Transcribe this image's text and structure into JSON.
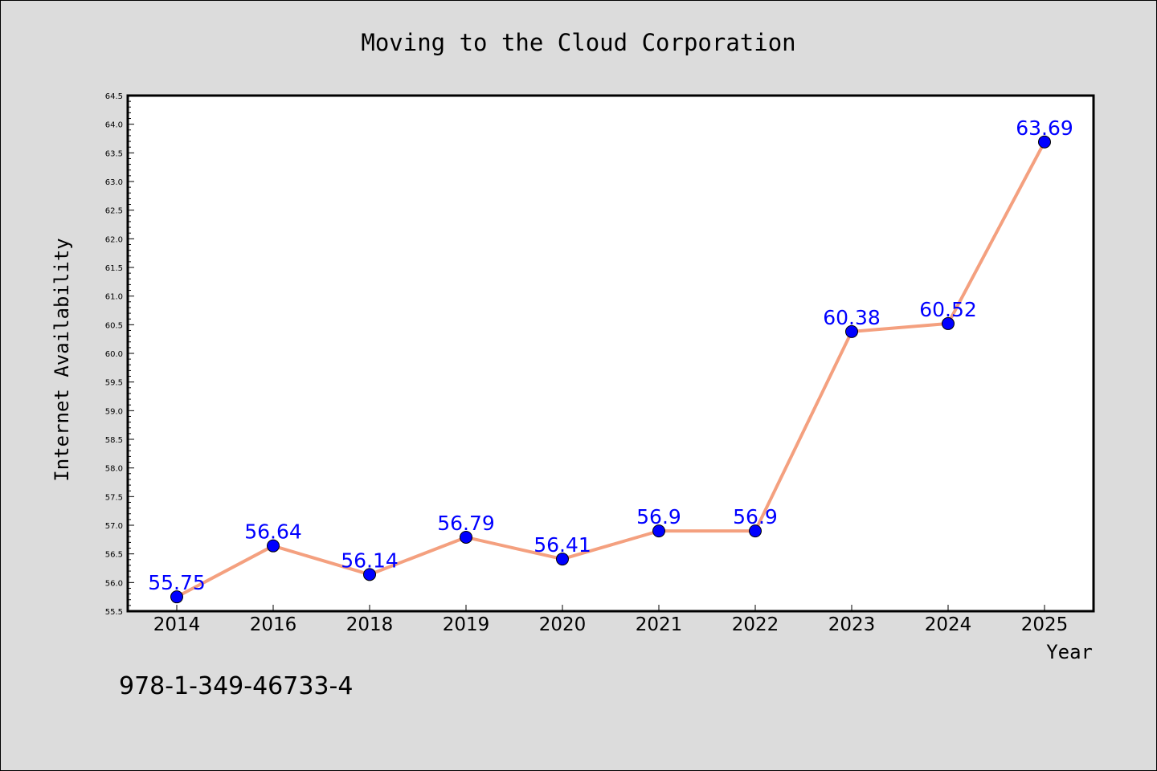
{
  "chart_data": {
    "type": "line",
    "title": "Moving to the Cloud Corporation",
    "xlabel": "Year",
    "ylabel": "Internet Availability",
    "categories": [
      "2014",
      "2016",
      "2018",
      "2019",
      "2020",
      "2021",
      "2022",
      "2023",
      "2024",
      "2025"
    ],
    "values": [
      55.75,
      56.64,
      56.14,
      56.79,
      56.41,
      56.9,
      56.9,
      60.38,
      60.52,
      63.69
    ],
    "data_labels": [
      "55.75",
      "56.64",
      "56.14",
      "56.79",
      "56.41",
      "56.9",
      "56.9",
      "60.38",
      "60.52",
      "63.69"
    ],
    "ylim": [
      55.5,
      64.5
    ],
    "yticks": [
      "55.5",
      "56.0",
      "56.5",
      "57.0",
      "57.5",
      "58.0",
      "58.5",
      "59.0",
      "59.5",
      "60.0",
      "60.5",
      "61.0",
      "61.5",
      "62.0",
      "62.5",
      "63.0",
      "63.5",
      "64.0",
      "64.5"
    ],
    "grid": false,
    "line_color": "#f4a07f",
    "marker_color": "#0000ff",
    "label_color": "#0000ff",
    "background_color": "#dcdcdc",
    "plot_background": "#ffffff"
  },
  "footer": {
    "isbn": "978-1-349-46733-4"
  }
}
